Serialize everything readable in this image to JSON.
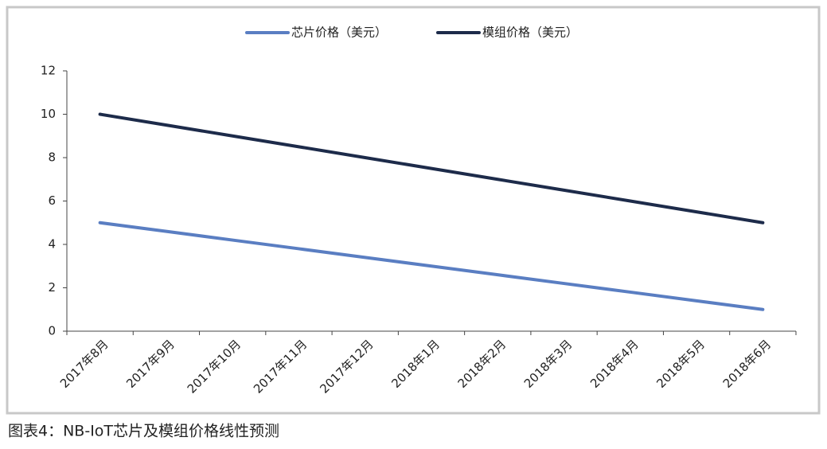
{
  "chart_data": {
    "type": "line",
    "categories": [
      "2017年8月",
      "2017年9月",
      "2017年10月",
      "2017年11月",
      "2017年12月",
      "2018年1月",
      "2018年2月",
      "2018年3月",
      "2018年4月",
      "2018年5月",
      "2018年6月"
    ],
    "series": [
      {
        "name": "芯片价格（美元）",
        "color": "#5a7ec2",
        "values": [
          5,
          4.6,
          4.2,
          3.8,
          3.4,
          3.0,
          2.6,
          2.2,
          1.8,
          1.4,
          1.0
        ]
      },
      {
        "name": "模组价格（美元）",
        "color": "#1d2b4a",
        "values": [
          10,
          9.5,
          9,
          8.5,
          8,
          7.5,
          7,
          6.5,
          6,
          5.5,
          5
        ]
      }
    ],
    "ylim": [
      0,
      12
    ],
    "yticks": [
      0,
      2,
      4,
      6,
      8,
      10,
      12
    ],
    "grid": false,
    "legend": "top"
  },
  "caption": "图表4：NB-IoT芯片及模组价格线性预测"
}
